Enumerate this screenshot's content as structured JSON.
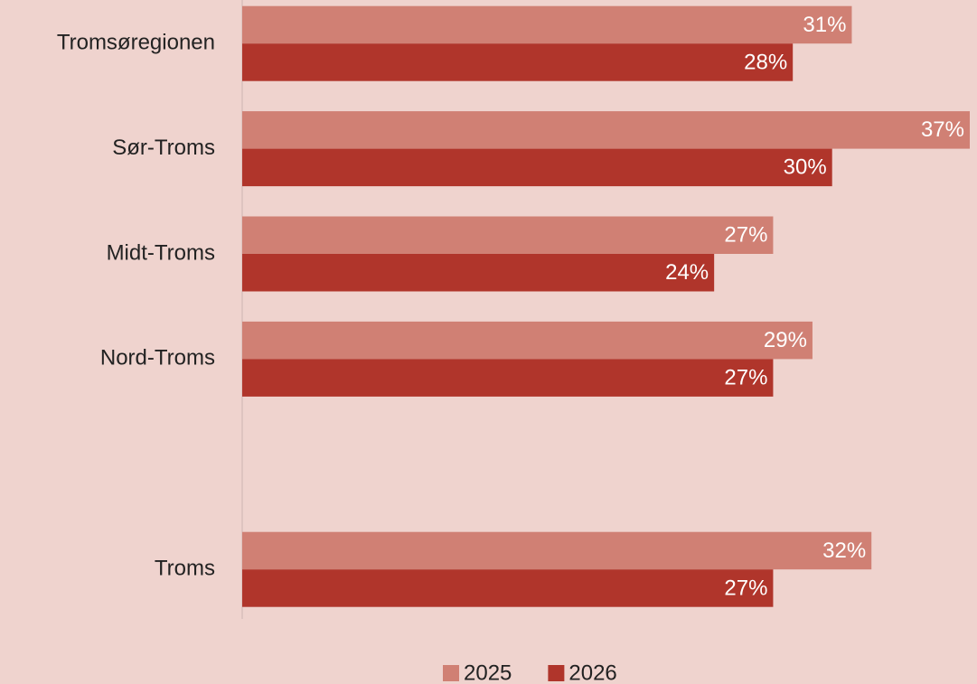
{
  "chart_data": {
    "type": "bar",
    "orientation": "horizontal",
    "categories": [
      "Tromsøregionen",
      "Sør-Troms",
      "Midt-Troms",
      "Nord-Troms",
      null,
      "Troms"
    ],
    "series": [
      {
        "name": "2025",
        "color": "#d08074",
        "values": [
          31,
          37,
          27,
          29,
          null,
          32
        ],
        "value_labels": [
          "31%",
          "37%",
          "27%",
          "29%",
          null,
          "32%"
        ]
      },
      {
        "name": "2026",
        "color": "#b0352b",
        "values": [
          28,
          30,
          24,
          27,
          null,
          27
        ],
        "value_labels": [
          "28%",
          "30%",
          "24%",
          "27%",
          null,
          "27%"
        ]
      }
    ],
    "xlim": [
      0,
      37
    ],
    "legend": "bottom"
  }
}
